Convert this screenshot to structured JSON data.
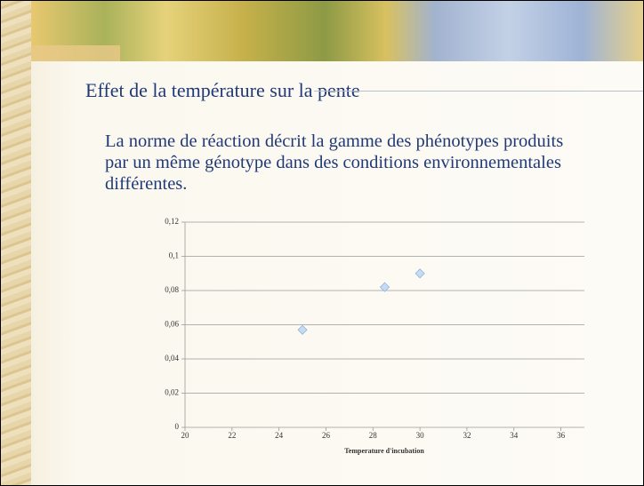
{
  "title": "Effet de la température sur la pente",
  "body": "La norme de réaction décrit la gamme des phénotypes produits par un même génotype dans des conditions environnementales différentes.",
  "chart_data": {
    "type": "scatter",
    "xlabel": "Temperature d'incubation",
    "series": [
      {
        "color": "#c6dcf2",
        "x": [
          25,
          28.5,
          30
        ],
        "values": [
          0.057,
          0.082,
          0.09
        ]
      }
    ],
    "xlim": [
      20,
      37
    ],
    "xticks": [
      20,
      22,
      24,
      26,
      28,
      30,
      32,
      34,
      36
    ],
    "ylim": [
      0,
      0.12
    ],
    "yticks": [
      0,
      {
        "value": 0.02,
        "label": "0,02"
      },
      {
        "value": 0.04,
        "label": "0,04"
      },
      {
        "value": 0.06,
        "label": "0,06"
      },
      {
        "value": 0.08,
        "label": "0,08"
      },
      {
        "value": 0.1,
        "label": "0,1"
      },
      {
        "value": 0.12,
        "label": "0,12"
      }
    ],
    "grid": true
  }
}
